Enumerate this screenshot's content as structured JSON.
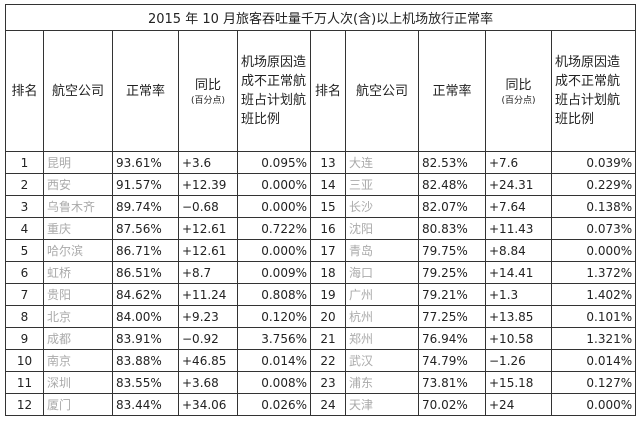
{
  "table": {
    "title": "2015 年 10 月旅客吞吐量千万人次(含)以上机场放行正常率",
    "header": {
      "rank": "排名",
      "company": "航空公司",
      "rate": "正常率",
      "yoy": "同比",
      "yoy_unit": "(百分点)",
      "ratio": "机场原因造成不正常航班占计划航班比例"
    },
    "rows": [
      [
        "1",
        "昆明",
        "93.61%",
        "+3.6",
        "0.095%",
        "13",
        "大连",
        "82.53%",
        "+7.6",
        "0.039%"
      ],
      [
        "2",
        "西安",
        "91.57%",
        "+12.39",
        "0.000%",
        "14",
        "三亚",
        "82.48%",
        "+24.31",
        "0.229%"
      ],
      [
        "3",
        "乌鲁木齐",
        "89.74%",
        "−0.68",
        "0.000%",
        "15",
        "长沙",
        "82.07%",
        "+7.64",
        "0.138%"
      ],
      [
        "4",
        "重庆",
        "87.56%",
        "+12.61",
        "0.722%",
        "16",
        "沈阳",
        "80.83%",
        "+11.43",
        "0.073%"
      ],
      [
        "5",
        "哈尔滨",
        "86.71%",
        "+12.61",
        "0.000%",
        "17",
        "青岛",
        "79.75%",
        "+8.84",
        "0.000%"
      ],
      [
        "6",
        "虹桥",
        "86.51%",
        "+8.7",
        "0.009%",
        "18",
        "海口",
        "79.25%",
        "+14.41",
        "1.372%"
      ],
      [
        "7",
        "贵阳",
        "84.62%",
        "+11.24",
        "0.808%",
        "19",
        "广州",
        "79.21%",
        "+1.3",
        "1.402%"
      ],
      [
        "8",
        "北京",
        "84.00%",
        "+9.23",
        "0.120%",
        "20",
        "杭州",
        "77.25%",
        "+13.85",
        "0.101%"
      ],
      [
        "9",
        "成都",
        "83.91%",
        "−0.92",
        "3.756%",
        "21",
        "郑州",
        "76.94%",
        "+10.58",
        "1.321%"
      ],
      [
        "10",
        "南京",
        "83.88%",
        "+46.85",
        "0.014%",
        "22",
        "武汉",
        "74.79%",
        "−1.26",
        "0.014%"
      ],
      [
        "11",
        "深圳",
        "83.55%",
        "+3.68",
        "0.008%",
        "23",
        "浦东",
        "73.81%",
        "+15.18",
        "0.127%"
      ],
      [
        "12",
        "厦门",
        "83.44%",
        "+34.06",
        "0.026%",
        "24",
        "天津",
        "70.02%",
        "+24",
        "0.000%"
      ]
    ]
  }
}
